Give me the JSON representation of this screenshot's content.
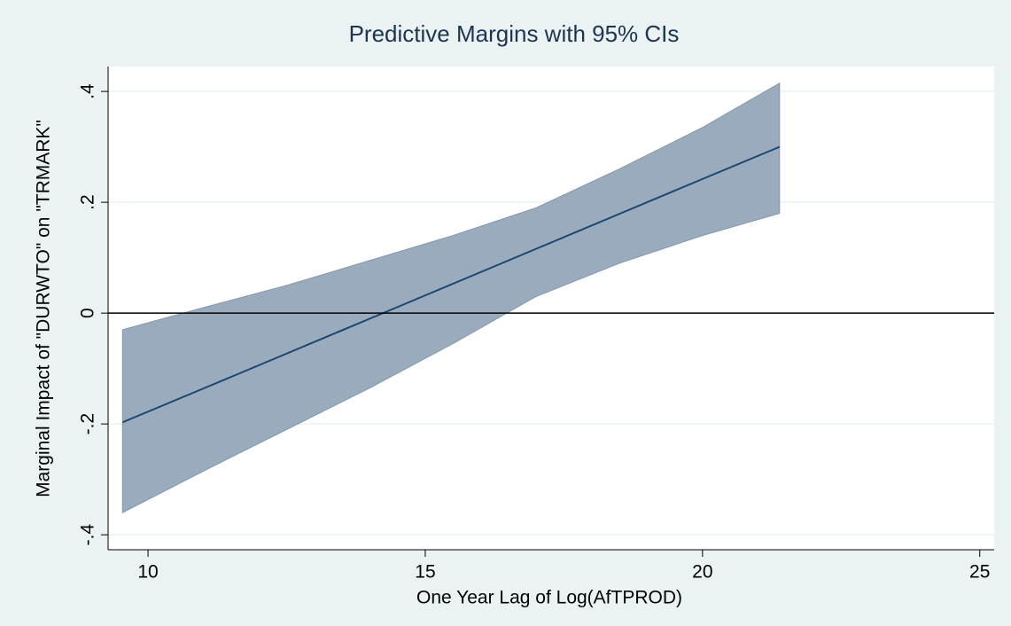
{
  "chart_data": {
    "type": "line",
    "title": "Predictive Margins with 95% CIs",
    "xlabel": "One Year Lag of Log(AfTPROD)",
    "ylabel": "Marginal Impact of \"DURWTO\" on \"TRMARK\"",
    "x": [
      9.54,
      11,
      12.5,
      14,
      15.5,
      17,
      18.5,
      20,
      21.39
    ],
    "series": [
      {
        "color": "#1a476f",
        "values": [
          -0.197,
          -0.136,
          -0.073,
          -0.01,
          0.053,
          0.116,
          0.179,
          0.242,
          0.3
        ]
      }
    ],
    "ci": {
      "color": "#9aabbd",
      "lower": [
        -0.36,
        -0.285,
        -0.21,
        -0.135,
        -0.055,
        0.03,
        0.09,
        0.14,
        0.18
      ],
      "upper": [
        -0.03,
        0.01,
        0.05,
        0.095,
        0.14,
        0.19,
        0.26,
        0.335,
        0.415
      ]
    },
    "xlim": [
      9.28,
      25.26
    ],
    "xticks": [
      10,
      15,
      20,
      25
    ],
    "ylim": [
      -0.427,
      0.445
    ],
    "yticks": [
      {
        "value": -0.4,
        "label": "-.4"
      },
      {
        "value": -0.2,
        "label": "-.2"
      },
      0,
      {
        "value": 0.2,
        "label": ".2"
      },
      {
        "value": 0.4,
        "label": ".4"
      }
    ],
    "yline": 0,
    "grid": true
  }
}
